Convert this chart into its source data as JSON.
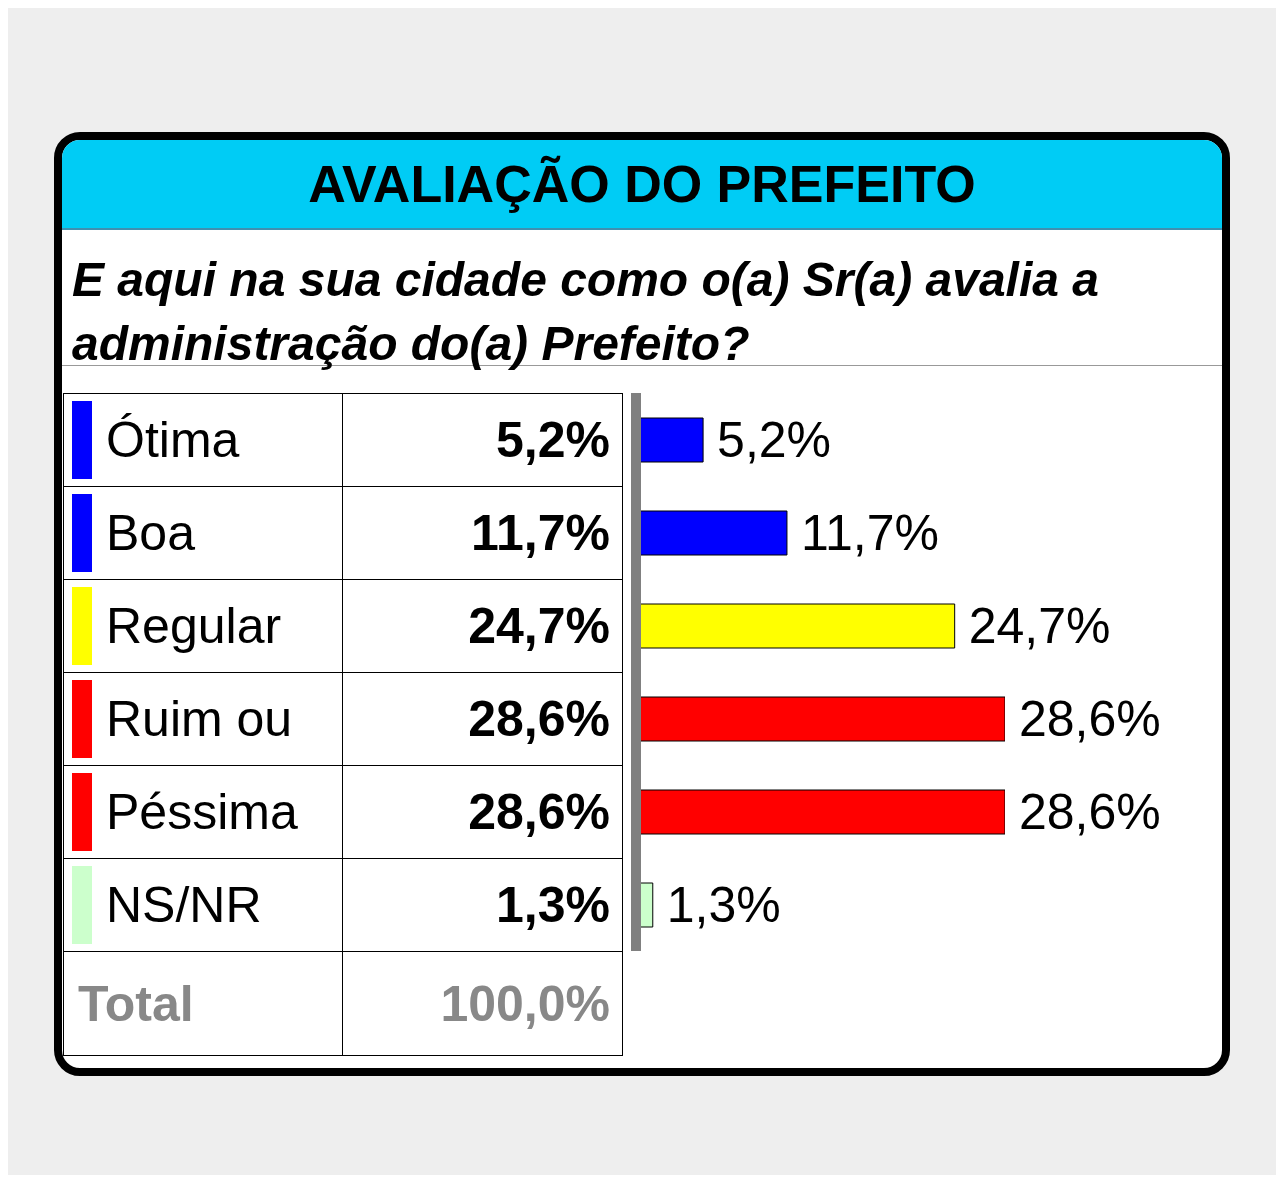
{
  "chart_data": {
    "type": "bar",
    "orientation": "horizontal",
    "title": "AVALIAÇÃO DO PREFEITO",
    "subtitle": "E aqui na sua cidade como o(a) Sr(a) avalia a administração do(a) Prefeito?",
    "categories": [
      "Ótima",
      "Boa",
      "Regular",
      "Ruim ou",
      "Péssima",
      "NS/NR"
    ],
    "values": [
      5.2,
      11.7,
      24.7,
      28.6,
      28.6,
      1.3
    ],
    "value_labels": [
      "5,2%",
      "11,7%",
      "24,7%",
      "28,6%",
      "28,6%",
      "1,3%"
    ],
    "colors": [
      "#0000ff",
      "#0000ff",
      "#ffff00",
      "#ff0000",
      "#ff0000",
      "#ccffcc"
    ],
    "annotations": [
      "Total",
      "100,0%"
    ],
    "tick_labels": false
  }
}
